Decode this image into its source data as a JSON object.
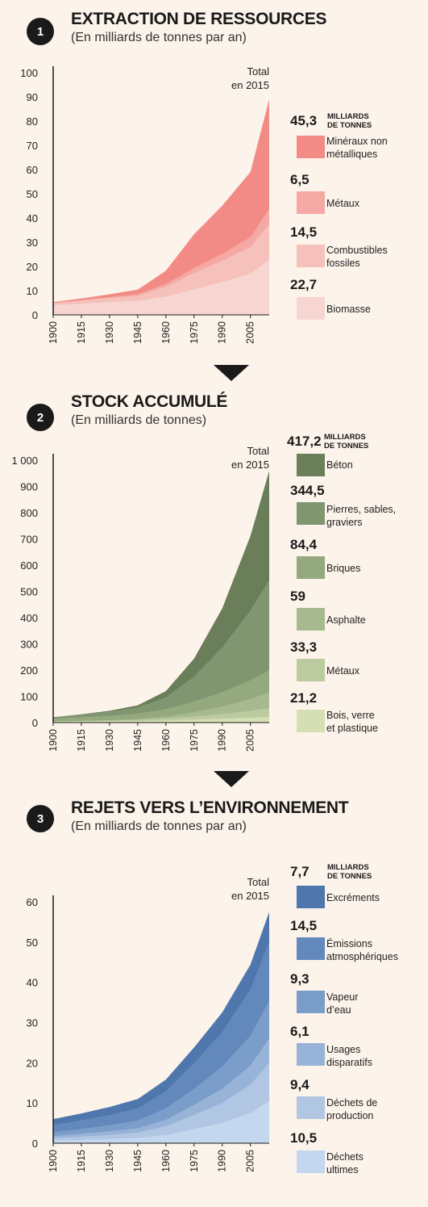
{
  "panels": [
    {
      "number": "1",
      "title": "EXTRACTION DE RESSOURCES",
      "subtitle": "(En milliards de tonnes par an)",
      "total_label": [
        "Total",
        "en 2015"
      ],
      "unit": [
        "MILLIARDS",
        "DE TONNES"
      ],
      "legend": [
        {
          "value": "45,3",
          "label": [
            "Minéraux non",
            "métalliques"
          ],
          "color": "#f28b85"
        },
        {
          "value": "6,5",
          "label": [
            "Métaux"
          ],
          "color": "#f5a9a4"
        },
        {
          "value": "14,5",
          "label": [
            "Combustibles",
            "fossiles"
          ],
          "color": "#f6c0bb"
        },
        {
          "value": "22,7",
          "label": [
            "Biomasse"
          ],
          "color": "#f7d6d2"
        }
      ]
    },
    {
      "number": "2",
      "title": "STOCK ACCUMULÉ",
      "subtitle": "(En milliards de tonnes)",
      "total_label": [
        "Total",
        "en 2015"
      ],
      "unit": [
        "MILLIARDS",
        "DE TONNES"
      ],
      "legend": [
        {
          "value": "417,2",
          "label": [
            "Béton"
          ],
          "color": "#6b7e5a"
        },
        {
          "value": "344,5",
          "label": [
            "Pierres, sables,",
            "graviers"
          ],
          "color": "#7f9670"
        },
        {
          "value": "84,4",
          "label": [
            "Briques"
          ],
          "color": "#94a97e"
        },
        {
          "value": "59",
          "label": [
            "Asphalte"
          ],
          "color": "#a6b98f"
        },
        {
          "value": "33,3",
          "label": [
            "Métaux"
          ],
          "color": "#bccb9f"
        },
        {
          "value": "21,2",
          "label": [
            "Bois, verre",
            "et plastique"
          ],
          "color": "#d4dfb3"
        }
      ]
    },
    {
      "number": "3",
      "title": "REJETS VERS L’ENVIRONNEMENT",
      "subtitle": "(En milliards de tonnes par an)",
      "total_label": [
        "Total",
        "en 2015"
      ],
      "unit": [
        "MILLIARDS",
        "DE TONNES"
      ],
      "legend": [
        {
          "value": "7,7",
          "label": [
            "Excréments"
          ],
          "color": "#4f77ae"
        },
        {
          "value": "14,5",
          "label": [
            "Émissions",
            "atmosphériques"
          ],
          "color": "#6388bb"
        },
        {
          "value": "9,3",
          "label": [
            "Vapeur",
            "d’eau"
          ],
          "color": "#7b9dca"
        },
        {
          "value": "6,1",
          "label": [
            "Usages",
            "disparatifs"
          ],
          "color": "#97b3d8"
        },
        {
          "value": "9,4",
          "label": [
            "Déchets de",
            "production"
          ],
          "color": "#b0c6e2"
        },
        {
          "value": "10,5",
          "label": [
            "Déchets",
            "ultimes"
          ],
          "color": "#c3d7ee"
        }
      ]
    }
  ],
  "chart_data": [
    {
      "type": "area",
      "stacked": true,
      "x": [
        1900,
        1915,
        1930,
        1945,
        1960,
        1975,
        1990,
        2005,
        2015
      ],
      "x_ticks": [
        "1900",
        "1915",
        "1930",
        "1945",
        "1960",
        "1975",
        "1990",
        "2005"
      ],
      "y_ticks": [
        "0",
        "10",
        "20",
        "30",
        "40",
        "50",
        "60",
        "70",
        "80",
        "90",
        "100"
      ],
      "ylim": [
        0,
        100
      ],
      "series": [
        {
          "name": "Biomasse",
          "values": [
            4,
            4.6,
            5.3,
            5.8,
            7.5,
            10.5,
            13.5,
            17,
            22.7
          ],
          "color": "#f7d6d2"
        },
        {
          "name": "Combustibles fossiles",
          "values": [
            0.8,
            1.2,
            1.6,
            2,
            4,
            6.8,
            8.8,
            11,
            14.5
          ],
          "color": "#f6c0bb"
        },
        {
          "name": "Métaux",
          "values": [
            0.2,
            0.3,
            0.4,
            0.6,
            1.2,
            2,
            2.8,
            4,
            6.5
          ],
          "color": "#f5a9a4"
        },
        {
          "name": "Minéraux non métalliques",
          "values": [
            0.3,
            0.7,
            1.2,
            2,
            5.5,
            14,
            20,
            27,
            45.3
          ],
          "color": "#f28b85"
        }
      ]
    },
    {
      "type": "area",
      "stacked": true,
      "x": [
        1900,
        1915,
        1930,
        1945,
        1960,
        1975,
        1990,
        2005,
        2015
      ],
      "x_ticks": [
        "1900",
        "1915",
        "1930",
        "1945",
        "1960",
        "1975",
        "1990",
        "2005"
      ],
      "y_ticks": [
        "0",
        "100",
        "200",
        "300",
        "400",
        "500",
        "600",
        "700",
        "800",
        "900",
        "1 000"
      ],
      "ylim": [
        0,
        1000
      ],
      "series": [
        {
          "name": "Bois, verre et plastique",
          "values": [
            3,
            4,
            5,
            6,
            8,
            11,
            14,
            18,
            21.2
          ],
          "color": "#d4dfb3"
        },
        {
          "name": "Métaux",
          "values": [
            1,
            1.5,
            2.5,
            4,
            7,
            12,
            18,
            26,
            33.3
          ],
          "color": "#bccb9f"
        },
        {
          "name": "Asphalte",
          "values": [
            0.5,
            1,
            1.5,
            3,
            7,
            16,
            28,
            45,
            59
          ],
          "color": "#a6b98f"
        },
        {
          "name": "Briques",
          "values": [
            10,
            13,
            16,
            20,
            28,
            40,
            55,
            72,
            84.4
          ],
          "color": "#94a97e"
        },
        {
          "name": "Pierres, sables, graviers",
          "values": [
            6,
            10,
            16,
            24,
            45,
            95,
            170,
            265,
            344.5
          ],
          "color": "#7f9670"
        },
        {
          "name": "Béton",
          "values": [
            0.5,
            2,
            4,
            9,
            25,
            70,
            150,
            285,
            417.2
          ],
          "color": "#6b7e5a"
        }
      ]
    },
    {
      "type": "area",
      "stacked": true,
      "x": [
        1900,
        1915,
        1930,
        1945,
        1960,
        1975,
        1990,
        2005,
        2015
      ],
      "x_ticks": [
        "1900",
        "1915",
        "1930",
        "1945",
        "1960",
        "1975",
        "1990",
        "2005"
      ],
      "y_ticks": [
        "0",
        "10",
        "20",
        "30",
        "40",
        "50",
        "60"
      ],
      "ylim": [
        0,
        60
      ],
      "series": [
        {
          "name": "Déchets ultimes",
          "values": [
            0.6,
            0.8,
            1,
            1.3,
            2,
            3.5,
            5,
            7.5,
            10.5
          ],
          "color": "#c3d7ee"
        },
        {
          "name": "Déchets de production",
          "values": [
            0.6,
            0.8,
            1,
            1.3,
            2.2,
            3.5,
            5,
            7,
            9.4
          ],
          "color": "#b0c6e2"
        },
        {
          "name": "Usages disparatifs",
          "values": [
            0.5,
            0.7,
            0.9,
            1.1,
            1.6,
            2.5,
            3.5,
            4.7,
            6.1
          ],
          "color": "#97b3d8"
        },
        {
          "name": "Vapeur d’eau",
          "values": [
            1,
            1.2,
            1.5,
            1.9,
            2.8,
            4,
            5.5,
            7.4,
            9.3
          ],
          "color": "#7b9dca"
        },
        {
          "name": "Émissions atmosphériques",
          "values": [
            1.8,
            2.1,
            2.5,
            3,
            4.2,
            6.3,
            8.5,
            11.5,
            14.5
          ],
          "color": "#6388bb"
        },
        {
          "name": "Excréments",
          "values": [
            1.5,
            1.8,
            2.1,
            2.4,
            3,
            4,
            5,
            6.3,
            7.7
          ],
          "color": "#4f77ae"
        }
      ]
    }
  ]
}
